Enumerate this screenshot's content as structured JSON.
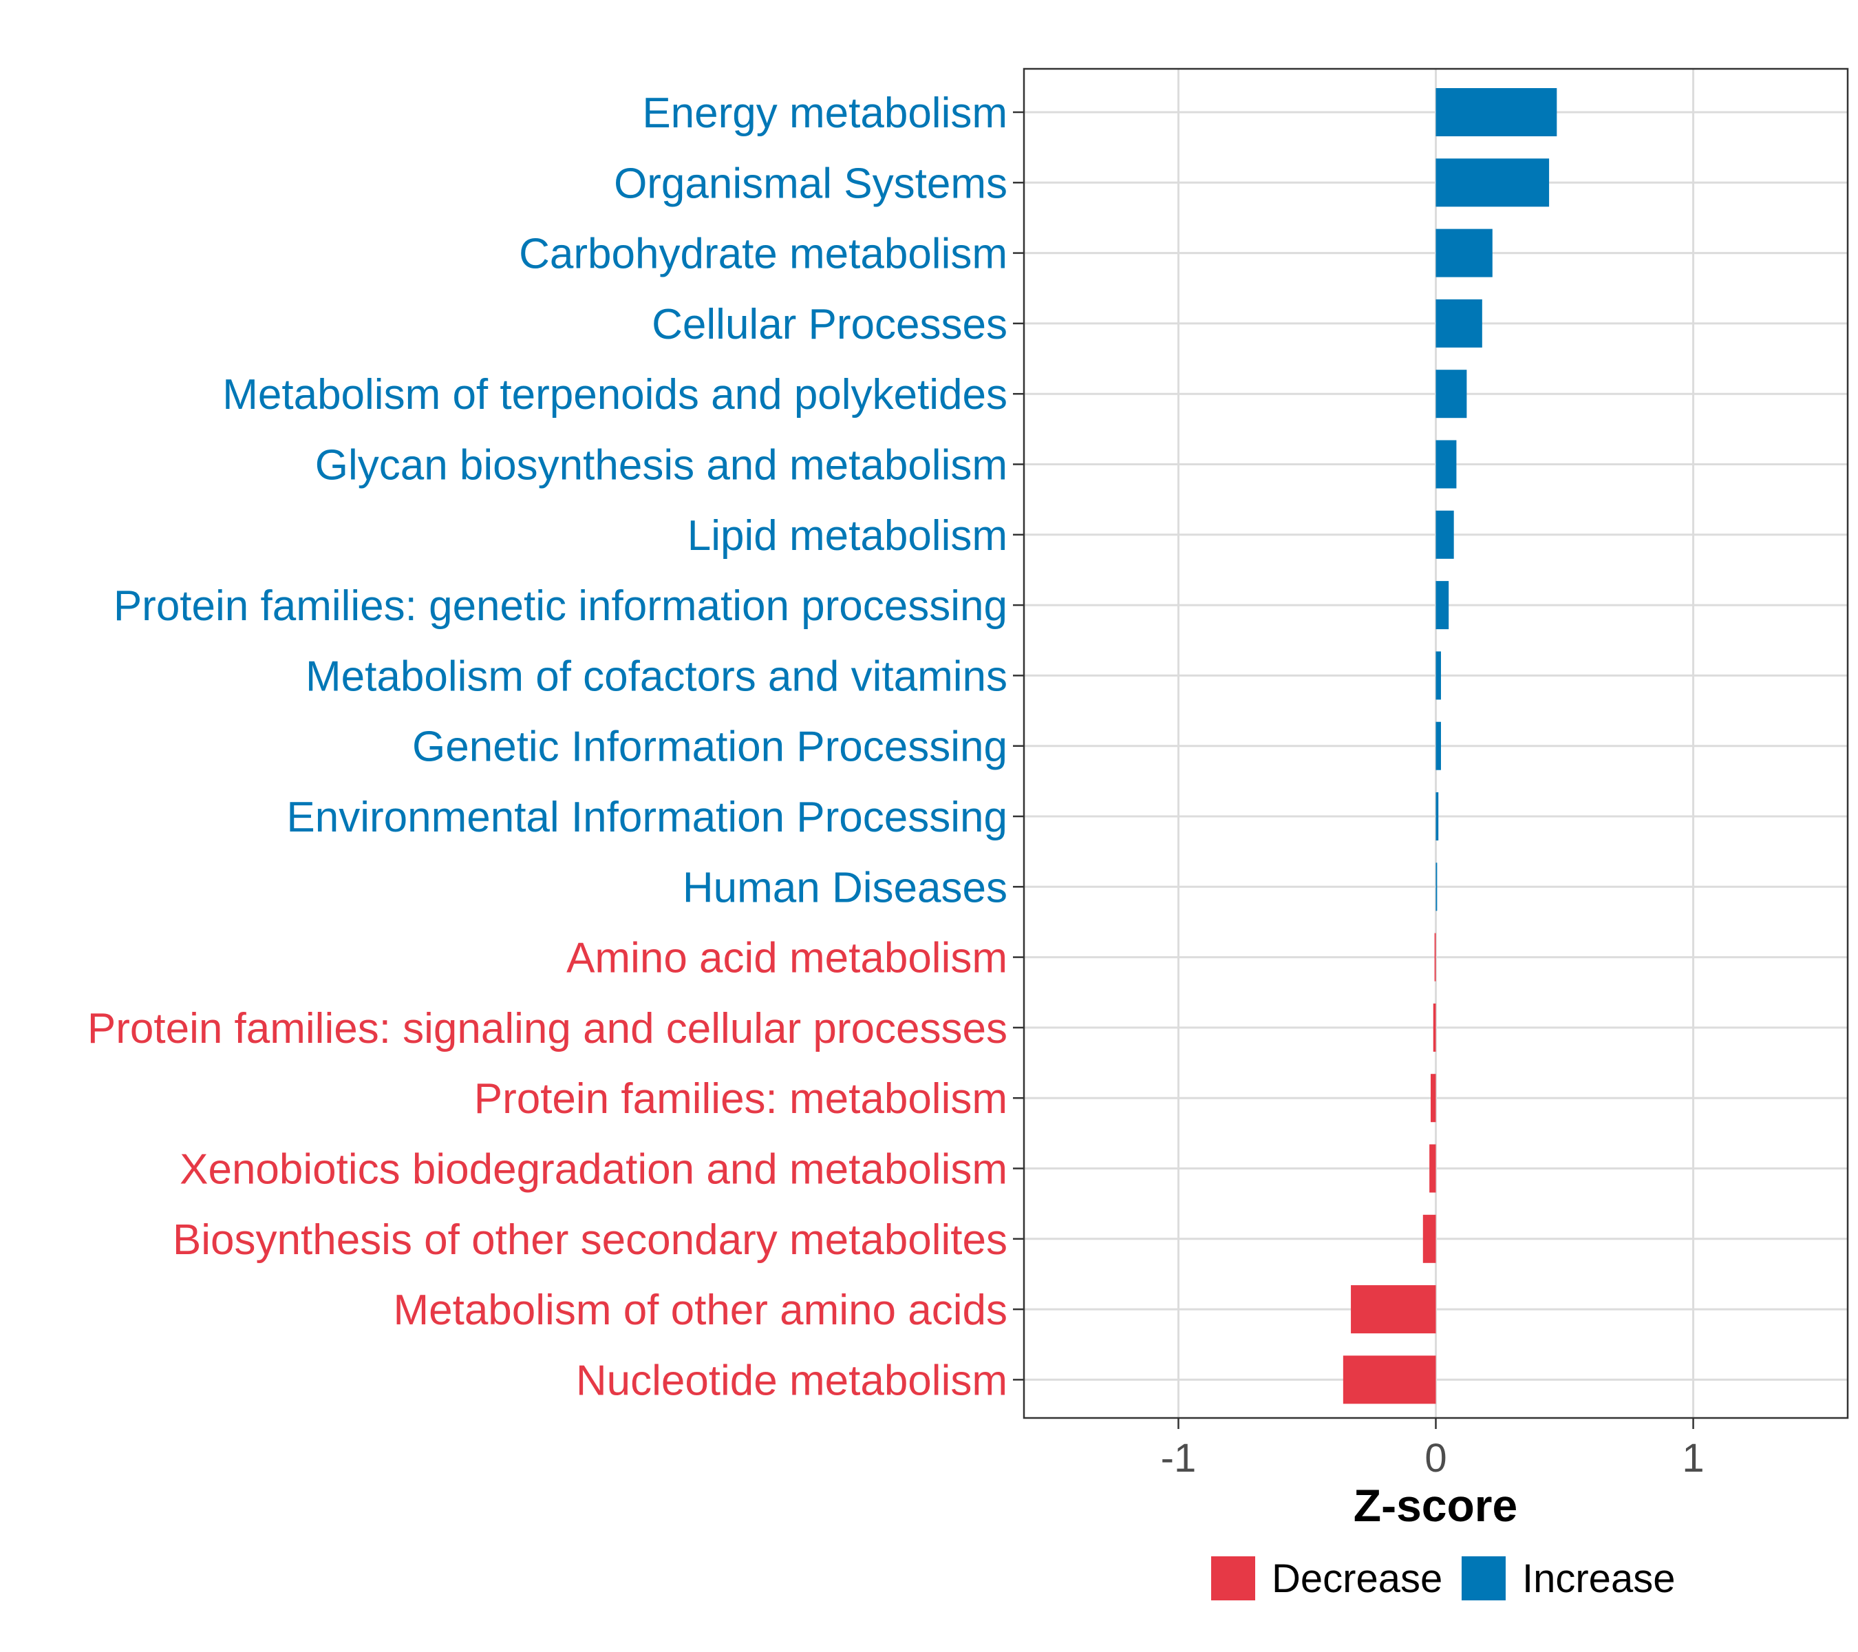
{
  "chart_data": {
    "type": "bar",
    "orientation": "horizontal",
    "title": "",
    "xlabel": "Z-score",
    "ylabel": "",
    "xlim": [
      -1.6,
      1.6
    ],
    "xticks": [
      {
        "value": -1,
        "label": "-1"
      },
      {
        "value": 0,
        "label": "0"
      },
      {
        "value": 1,
        "label": "1"
      }
    ],
    "grid": true,
    "legend": {
      "position": "bottom",
      "entries": [
        {
          "key": "decrease",
          "label": "Decrease",
          "color": "#E63946"
        },
        {
          "key": "increase",
          "label": "Increase",
          "color": "#0077B6"
        }
      ]
    },
    "categories": [
      {
        "label": "Energy metabolism",
        "value": 0.47,
        "group": "increase"
      },
      {
        "label": "Organismal Systems",
        "value": 0.44,
        "group": "increase"
      },
      {
        "label": "Carbohydrate metabolism",
        "value": 0.22,
        "group": "increase"
      },
      {
        "label": "Cellular Processes",
        "value": 0.18,
        "group": "increase"
      },
      {
        "label": "Metabolism of terpenoids and polyketides",
        "value": 0.12,
        "group": "increase"
      },
      {
        "label": "Glycan biosynthesis and metabolism",
        "value": 0.08,
        "group": "increase"
      },
      {
        "label": "Lipid metabolism",
        "value": 0.07,
        "group": "increase"
      },
      {
        "label": "Protein families: genetic information processing",
        "value": 0.05,
        "group": "increase"
      },
      {
        "label": "Metabolism of cofactors and vitamins",
        "value": 0.02,
        "group": "increase"
      },
      {
        "label": "Genetic Information Processing",
        "value": 0.02,
        "group": "increase"
      },
      {
        "label": "Environmental Information Processing",
        "value": 0.01,
        "group": "increase"
      },
      {
        "label": "Human Diseases",
        "value": 0.005,
        "group": "increase"
      },
      {
        "label": "Amino acid metabolism",
        "value": -0.005,
        "group": "decrease"
      },
      {
        "label": "Protein families: signaling and cellular processes",
        "value": -0.01,
        "group": "decrease"
      },
      {
        "label": "Protein families: metabolism",
        "value": -0.02,
        "group": "decrease"
      },
      {
        "label": "Xenobiotics biodegradation and metabolism",
        "value": -0.025,
        "group": "decrease"
      },
      {
        "label": "Biosynthesis of other secondary metabolites",
        "value": -0.05,
        "group": "decrease"
      },
      {
        "label": "Metabolism of other amino acids",
        "value": -0.33,
        "group": "decrease"
      },
      {
        "label": "Nucleotide metabolism",
        "value": -0.36,
        "group": "decrease"
      }
    ]
  }
}
